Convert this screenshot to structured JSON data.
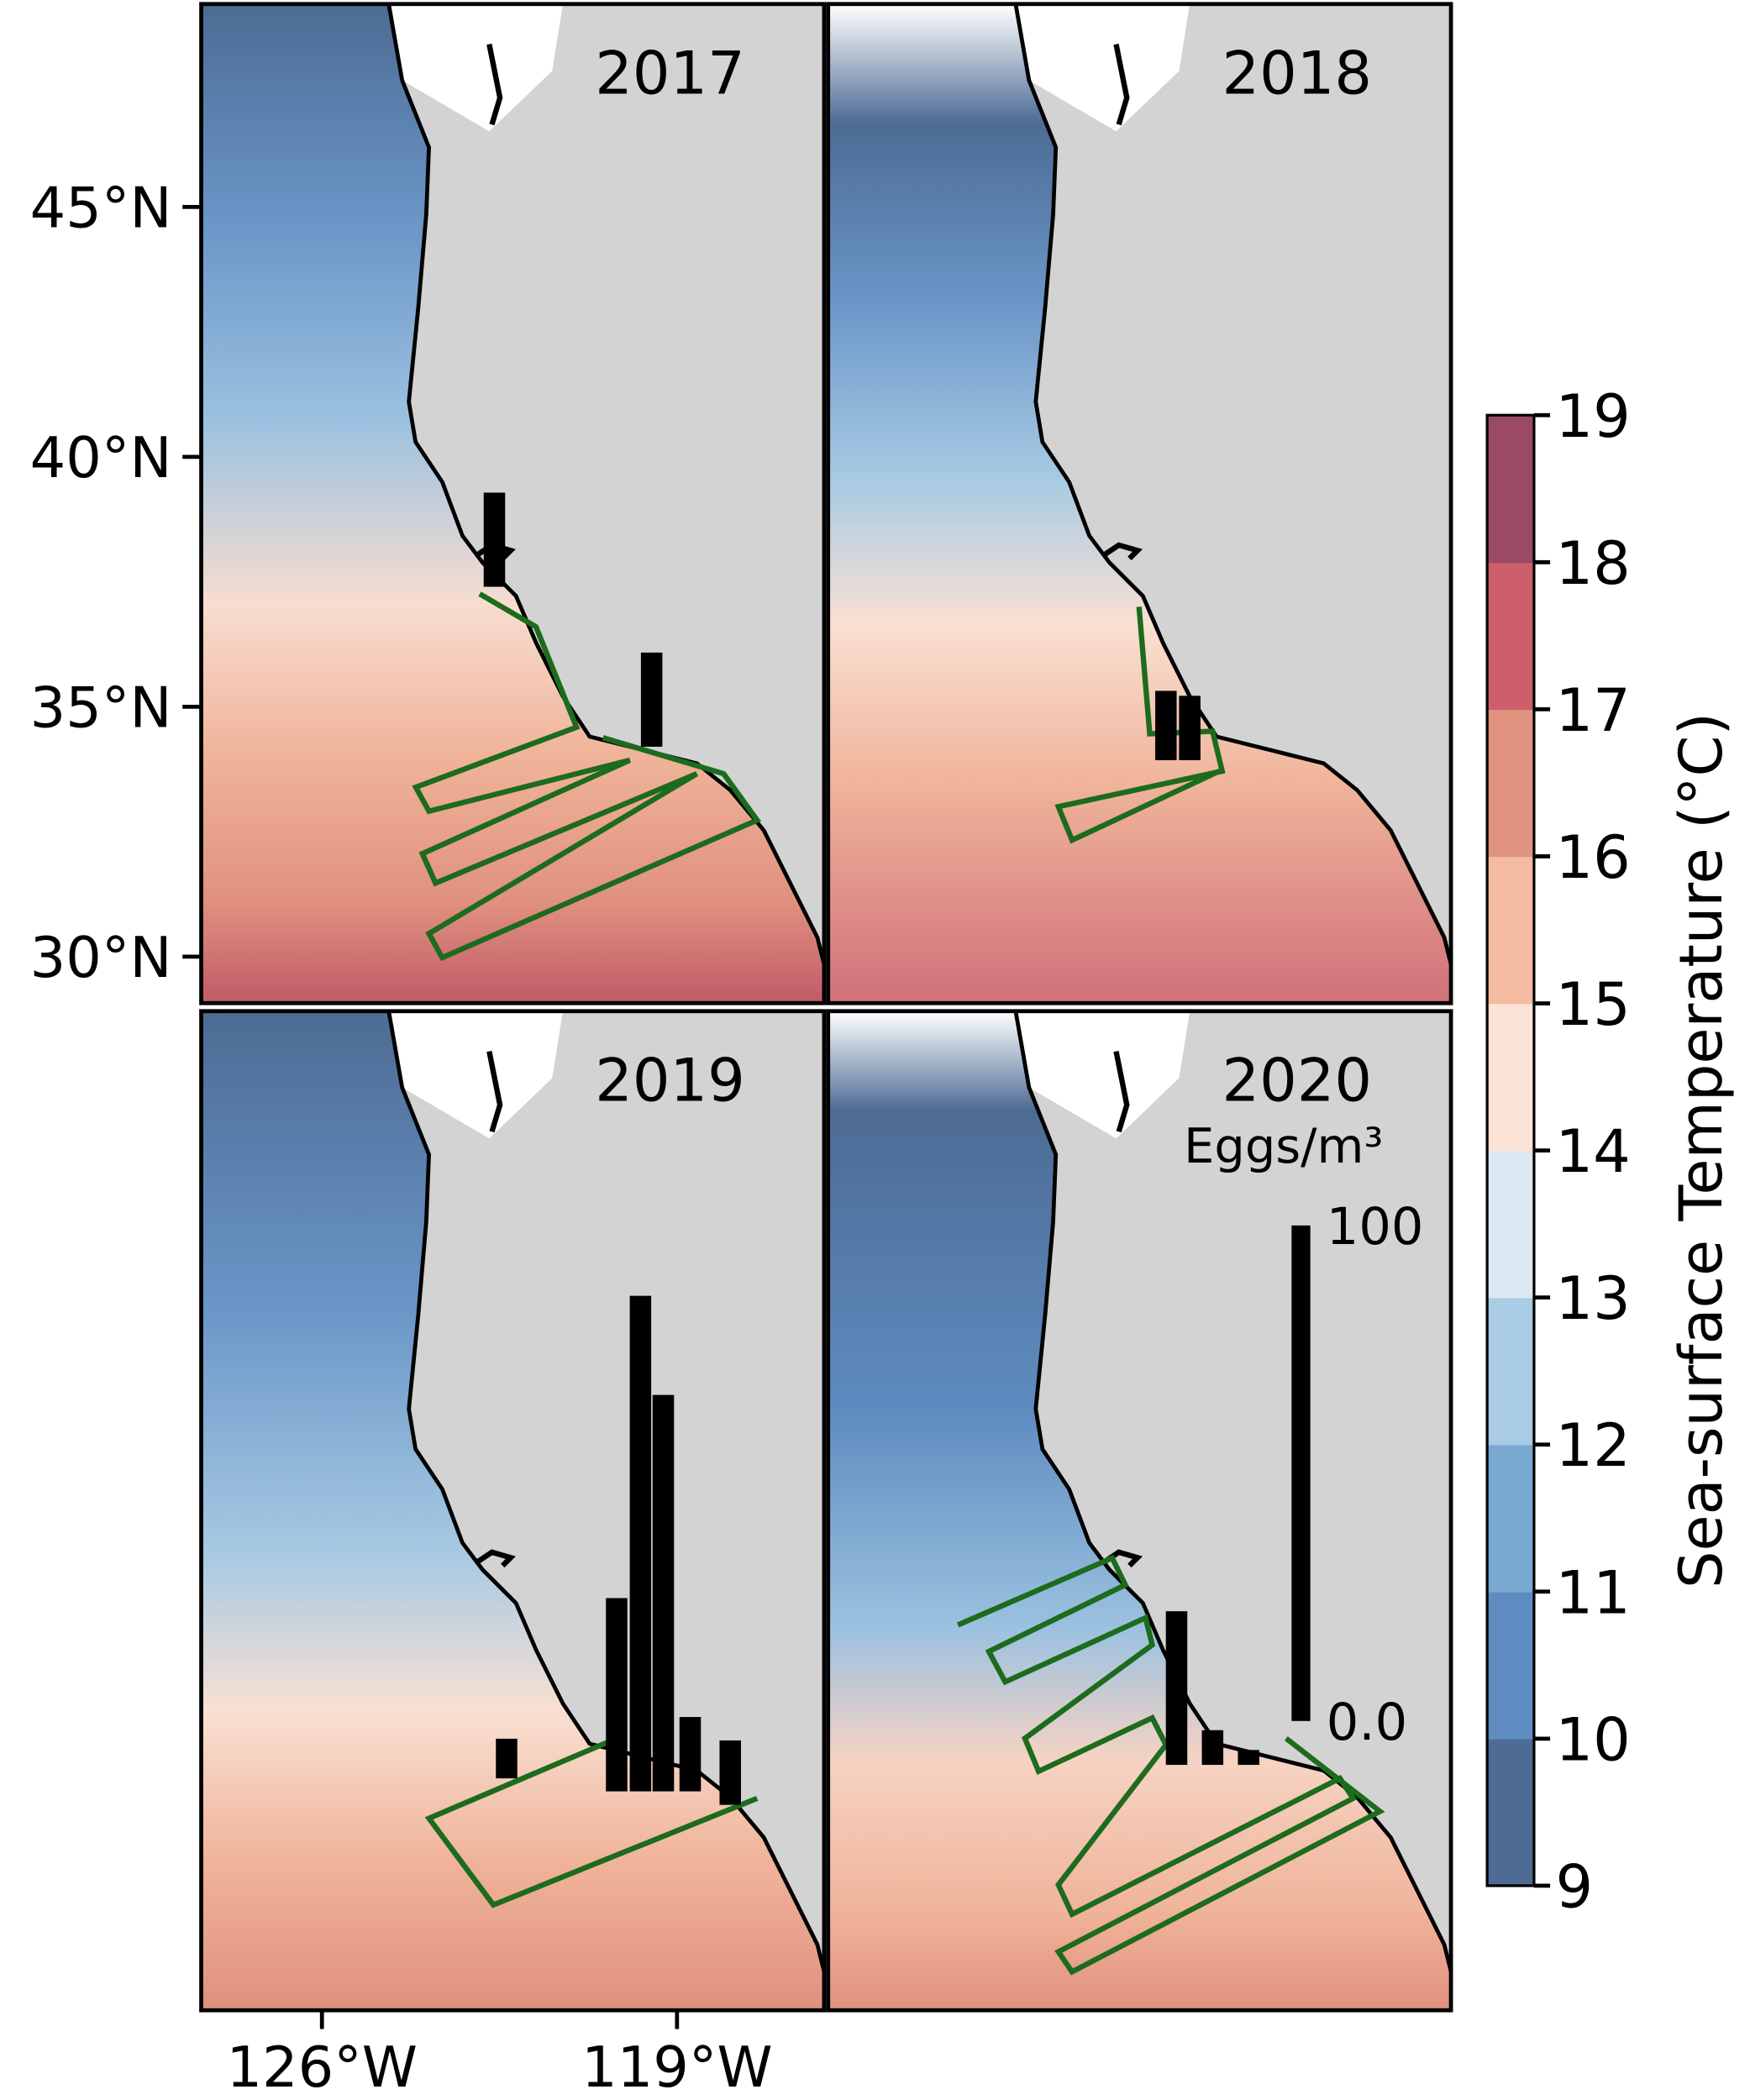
{
  "chart_data": {
    "type": "map",
    "latlim": [
      29.07,
      49.06
    ],
    "lonlim": [
      -128.38,
      -116.1
    ],
    "yticks": [
      {
        "value": 45,
        "label": "45°N"
      },
      {
        "value": 40,
        "label": "40°N"
      },
      {
        "value": 35,
        "label": "35°N"
      },
      {
        "value": 30,
        "label": "30°N"
      }
    ],
    "xticks": [
      {
        "value": -126,
        "label": "126°W"
      },
      {
        "value": -119,
        "label": "119°W"
      }
    ],
    "colorbar": {
      "label": "Sea-surface Temperature (°C)",
      "lim": [
        9,
        19
      ],
      "ticks": [
        9,
        10,
        11,
        12,
        13,
        14,
        15,
        16,
        17,
        18,
        19
      ],
      "colors": [
        "#4d6b94",
        "#5e8cc0",
        "#79a8d1",
        "#a9cbe3",
        "#dce8f2",
        "#fbe3d6",
        "#f4bba1",
        "#e0937f",
        "#cc5f6b",
        "#9a4a66"
      ]
    },
    "track_color": "#1d6b1d",
    "egg_color": "#000000",
    "egg_legend": {
      "title": "Eggs/m³",
      "ticks": [
        {
          "value": 0,
          "label": "0.0"
        },
        100
      ]
    },
    "panels": [
      {
        "title": "2017",
        "track": {
          "lon": [
            -122.89,
            -121.78,
            -120.98,
            -124.15,
            -123.89,
            -119.93,
            -124.02,
            -123.76,
            -118.61,
            -123.89,
            -123.63,
            -117.42,
            -118.08,
            -120.46
          ],
          "lat": [
            37.26,
            36.6,
            34.59,
            33.39,
            32.91,
            33.93,
            32.06,
            31.47,
            33.66,
            30.46,
            29.98,
            32.73,
            33.66,
            34.38
          ]
        },
        "eggs": {
          "lon": [
            -122.6,
            -119.5
          ],
          "lat": [
            37.4,
            34.2
          ],
          "values": [
            19,
            19
          ]
        }
      },
      {
        "title": "2018",
        "track": {
          "lon": [
            -122.25,
            -122.04,
            -120.8,
            -120.61,
            -123.84,
            -123.57,
            -120.67
          ],
          "lat": [
            37.0,
            34.46,
            34.51,
            33.71,
            33.0,
            32.33,
            33.71
          ]
        },
        "eggs": {
          "lon": [
            -121.72,
            -121.25
          ],
          "lat": [
            33.93,
            33.93
          ],
          "values": [
            14,
            13
          ]
        }
      },
      {
        "title": "2019",
        "track": {
          "lon": [
            -117.42,
            -122.62,
            -123.89,
            -120.19
          ],
          "lat": [
            33.31,
            31.18,
            32.91,
            34.51
          ]
        },
        "eggs": {
          "lon": [
            -122.36,
            -120.19,
            -119.72,
            -119.27,
            -118.74,
            -117.95
          ],
          "lat": [
            33.71,
            33.45,
            33.45,
            33.45,
            33.45,
            33.18
          ],
          "values": [
            8,
            39,
            100,
            80,
            15,
            13
          ]
        }
      },
      {
        "title": "2020",
        "track": {
          "lon": [
            -125.82,
            -122.78,
            -122.52,
            -125.21,
            -124.89,
            -122.12,
            -121.99,
            -124.5,
            -124.23,
            -121.99,
            -121.72,
            -123.84,
            -123.57,
            -118.29,
            -118.03,
            -123.84,
            -123.57,
            -117.5,
            -119.35
          ],
          "lat": [
            36.78,
            38.12,
            37.58,
            36.25,
            35.64,
            36.92,
            36.38,
            34.51,
            33.85,
            34.92,
            34.38,
            31.58,
            30.99,
            33.71,
            33.31,
            30.24,
            29.84,
            33.05,
            34.51
          ]
        },
        "eggs": {
          "lon": [
            -121.51,
            -120.8,
            -120.09
          ],
          "lat": [
            33.98,
            33.98,
            33.98
          ],
          "values": [
            31,
            7,
            3
          ]
        }
      }
    ]
  }
}
